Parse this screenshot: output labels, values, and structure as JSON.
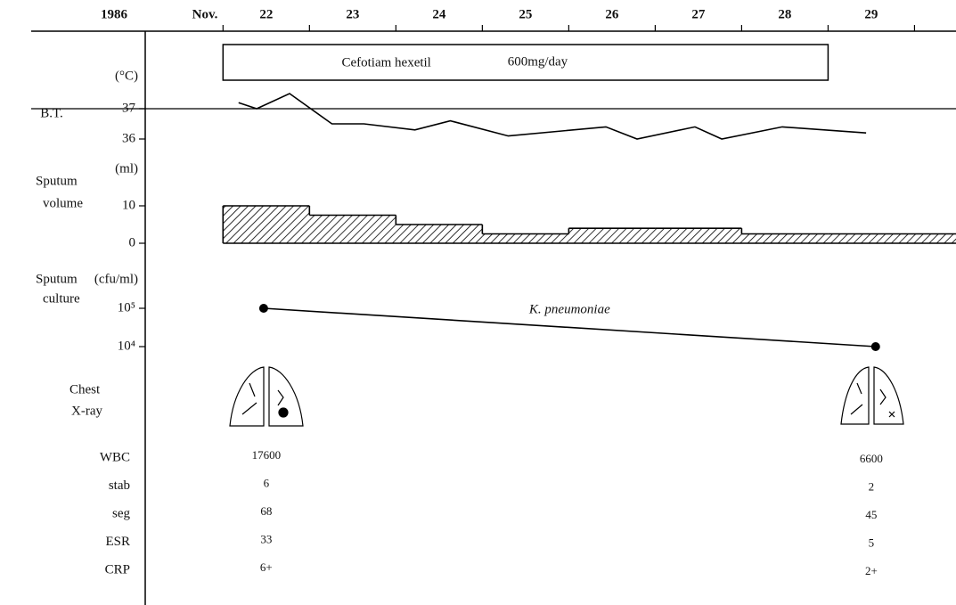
{
  "header": {
    "year": "1986",
    "month": "Nov.",
    "days": [
      "22",
      "23",
      "24",
      "25",
      "26",
      "27",
      "28",
      "29"
    ]
  },
  "treatment": {
    "drug": "Cefotiam hexetil",
    "dose": "600mg/day",
    "start": 22,
    "end": 29
  },
  "chart_data": [
    {
      "type": "line",
      "label": [
        "B.T."
      ],
      "unit": "(°C)",
      "color": "#000000",
      "x": [
        22.18,
        22.39,
        22.77,
        23.26,
        23.63,
        24.22,
        24.63,
        25.3,
        26.43,
        26.79,
        27.46,
        27.77,
        28.47,
        29.44
      ],
      "values": [
        37.2,
        37.0,
        37.5,
        36.5,
        36.5,
        36.3,
        36.6,
        36.1,
        36.4,
        36.0,
        36.4,
        36.0,
        36.4,
        36.2
      ],
      "xlim": [
        21.1,
        30.48
      ],
      "ylim": [
        35.5,
        38.5
      ],
      "yticks": [
        36,
        37
      ],
      "reference_line": 37
    },
    {
      "type": "step-area",
      "label": [
        "Sputum",
        "volume"
      ],
      "unit": "(ml)",
      "color": "#000000",
      "x": [
        22,
        23,
        24,
        25,
        26,
        27,
        28,
        29
      ],
      "values": [
        10,
        7.5,
        5,
        2.5,
        4,
        4,
        2.5,
        2.5
      ],
      "xlim": [
        21.1,
        30.48
      ],
      "ylim": [
        0,
        20
      ],
      "yticks": [
        0,
        10
      ]
    },
    {
      "type": "line",
      "label": [
        "Sputum",
        "culture"
      ],
      "unit": "(cfu/ml)",
      "color": "#000000",
      "x": [
        22.47,
        29.55
      ],
      "values": [
        100000,
        10000
      ],
      "markers": true,
      "log_scale": true,
      "annotation": "K. pneumoniae",
      "xlim": [
        21.1,
        30.48
      ],
      "ylim": [
        1000,
        1000000
      ],
      "yticks": [
        {
          "value": 10000,
          "label": "10⁴"
        },
        {
          "value": 100000,
          "label": "10⁵"
        }
      ]
    }
  ],
  "chest_xray": {
    "label": [
      "Chest",
      "X-ray"
    ]
  },
  "labs": {
    "rows": [
      {
        "label": "WBC",
        "values": [
          17600,
          6600
        ]
      },
      {
        "label": "stab",
        "values": [
          6,
          2
        ]
      },
      {
        "label": "seg",
        "values": [
          68,
          45
        ]
      },
      {
        "label": "ESR",
        "values": [
          33,
          5
        ]
      },
      {
        "label": "CRP",
        "values": [
          "6+",
          "2+"
        ]
      }
    ]
  }
}
